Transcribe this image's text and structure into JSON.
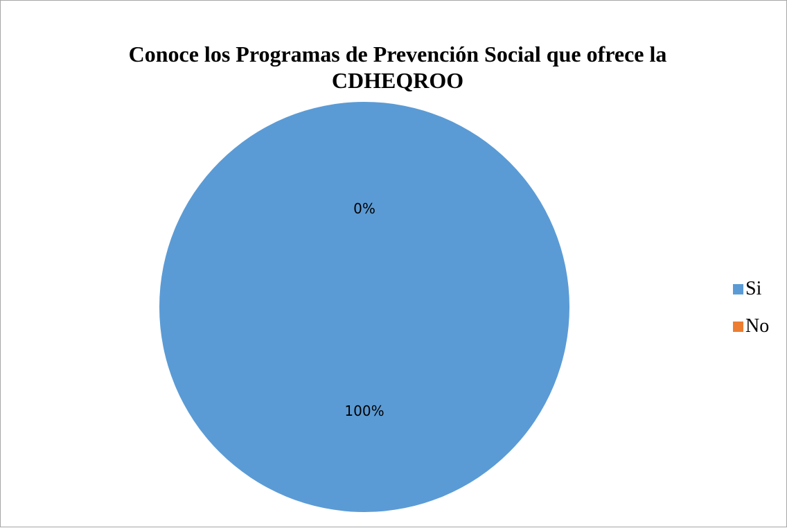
{
  "chart_data": {
    "type": "pie",
    "title": "Conoce los Programas de Prevención Social que ofrece la CDHEQROO",
    "categories": [
      "Si",
      "No"
    ],
    "values": [
      100,
      0
    ],
    "data_labels": [
      "100%",
      "0%"
    ],
    "colors": [
      "#5b9bd5",
      "#ed7d31"
    ],
    "legend_position": "right"
  }
}
